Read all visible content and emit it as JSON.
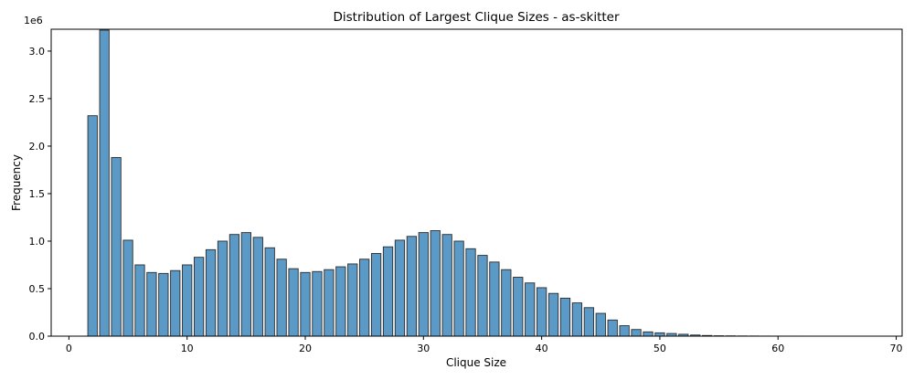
{
  "chart_data": {
    "type": "bar",
    "title": "Distribution of Largest Clique Sizes - as-skitter",
    "xlabel": "Clique Size",
    "ylabel": "Frequency",
    "y_offset_label": "1e6",
    "y_scale": 1000000,
    "xlim": [
      -1.5,
      70.5
    ],
    "ylim": [
      0,
      3230000
    ],
    "xticks": [
      0,
      10,
      20,
      30,
      40,
      50,
      60,
      70
    ],
    "yticks": [
      0.0,
      0.5,
      1.0,
      1.5,
      2.0,
      2.5,
      3.0
    ],
    "ytick_labels": [
      "0.0",
      "0.5",
      "1.0",
      "1.5",
      "2.0",
      "2.5",
      "3.0"
    ],
    "grid": false,
    "bar_color": "#5b9ac6",
    "edge_color": "#2b2b2b",
    "x": [
      2,
      3,
      4,
      5,
      6,
      7,
      8,
      9,
      10,
      11,
      12,
      13,
      14,
      15,
      16,
      17,
      18,
      19,
      20,
      21,
      22,
      23,
      24,
      25,
      26,
      27,
      28,
      29,
      30,
      31,
      32,
      33,
      34,
      35,
      36,
      37,
      38,
      39,
      40,
      41,
      42,
      43,
      44,
      45,
      46,
      47,
      48,
      49,
      50,
      51,
      52,
      53,
      54,
      55,
      56,
      57,
      58,
      59,
      60,
      61,
      62,
      63,
      64,
      65,
      66,
      67
    ],
    "values": [
      2320000,
      3220000,
      1880000,
      1010000,
      750000,
      670000,
      660000,
      690000,
      750000,
      830000,
      910000,
      1000000,
      1070000,
      1090000,
      1040000,
      930000,
      810000,
      710000,
      670000,
      680000,
      700000,
      730000,
      760000,
      810000,
      870000,
      940000,
      1010000,
      1050000,
      1090000,
      1110000,
      1070000,
      1000000,
      920000,
      850000,
      780000,
      700000,
      620000,
      560000,
      510000,
      450000,
      400000,
      350000,
      300000,
      240000,
      170000,
      110000,
      70000,
      45000,
      35000,
      28000,
      20000,
      12000,
      7000,
      4000,
      3000,
      2000,
      1500,
      1000,
      800,
      600,
      500,
      400,
      300,
      200,
      150,
      100
    ]
  }
}
